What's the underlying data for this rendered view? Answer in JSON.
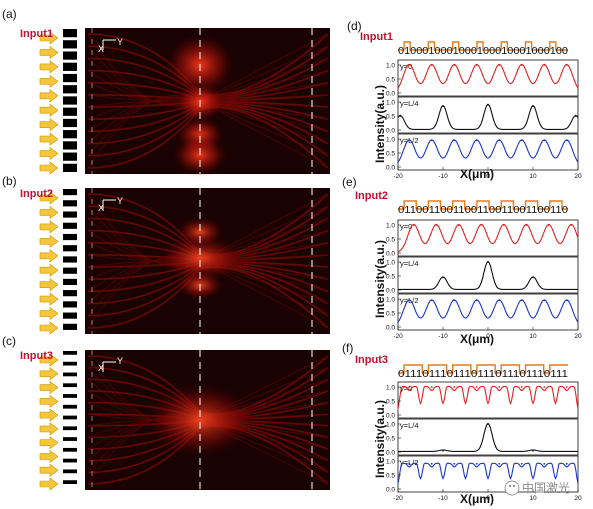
{
  "panels": {
    "a": {
      "letter": "(a)",
      "input": "Input1"
    },
    "b": {
      "letter": "(b)",
      "input": "Input2"
    },
    "c": {
      "letter": "(c)",
      "input": "Input3"
    },
    "d": {
      "letter": "(d)",
      "input": "Input1",
      "code": "0100010001000100010001000100"
    },
    "e": {
      "letter": "(e)",
      "input": "Input2",
      "code": "0110011001100110011001100110"
    },
    "f": {
      "letter": "(f)",
      "input": "Input3",
      "code": "0111011101110111011101110111"
    }
  },
  "sim_axes": {
    "x": "X",
    "y": "Y"
  },
  "shared": {
    "ylabel": "Intensity(a.u.)",
    "xlabel": "X(μm)",
    "ytick_labels": [
      "0.0",
      "0.5",
      "1.0"
    ],
    "xtick_labels": [
      "-20",
      "-10",
      "0",
      "10",
      "20"
    ]
  },
  "row_labels": [
    "y=0",
    "y=L/4",
    "y=L/2"
  ],
  "watermark": "中国激光",
  "chart_data": [
    {
      "type": "line",
      "panel": "d",
      "x_range": [
        -20,
        20
      ],
      "ylim": [
        0,
        1
      ],
      "series": [
        {
          "name": "y=0",
          "color": "#e02020",
          "peaks_x": [
            -17.5,
            -12.5,
            -7.5,
            -2.5,
            2.5,
            7.5,
            12.5,
            17.5
          ],
          "peaks_y": [
            1,
            1,
            1,
            1,
            1,
            1,
            1,
            1
          ]
        },
        {
          "name": "y=L/4",
          "color": "#111111",
          "peaks_x": [
            -19.5,
            -10,
            0,
            10,
            19.5
          ],
          "peaks_y": [
            0.5,
            0.85,
            0.9,
            0.85,
            0.5
          ]
        },
        {
          "name": "y=L/2",
          "color": "#1a35d0",
          "peaks_x": [
            -17.5,
            -12.5,
            -7.5,
            -2.5,
            2.5,
            7.5,
            12.5,
            17.5
          ],
          "peaks_y": [
            0.95,
            0.95,
            0.95,
            0.95,
            0.95,
            0.95,
            0.95,
            0.95
          ]
        }
      ]
    },
    {
      "type": "line",
      "panel": "e",
      "x_range": [
        -20,
        20
      ],
      "ylim": [
        0,
        1
      ],
      "series": [
        {
          "name": "y=0",
          "color": "#e02020",
          "peaks_x": [
            -16.5,
            -11.5,
            -6.5,
            -1.5,
            3.5,
            8.5,
            13.5,
            18.5
          ],
          "peaks_y": [
            1,
            1,
            1,
            1,
            1,
            1,
            1,
            1
          ]
        },
        {
          "name": "y=L/4",
          "color": "#111111",
          "peaks_x": [
            -10,
            0,
            10
          ],
          "peaks_y": [
            0.45,
            1,
            0.45
          ]
        },
        {
          "name": "y=L/2",
          "color": "#1a35d0",
          "peaks_x": [
            -17.5,
            -12.5,
            -7.5,
            -2.5,
            2.5,
            7.5,
            12.5,
            17.5
          ],
          "peaks_y": [
            0.95,
            0.95,
            0.95,
            0.95,
            0.95,
            0.95,
            0.95,
            0.95
          ]
        }
      ]
    },
    {
      "type": "line",
      "panel": "f",
      "x_range": [
        -20,
        20
      ],
      "ylim": [
        0,
        1
      ],
      "series": [
        {
          "name": "y=0",
          "color": "#e02020",
          "peaks_x": [
            -17.5,
            -12.5,
            -7.5,
            -2.5,
            2.5,
            7.5,
            12.5,
            17.5
          ],
          "peaks_y": [
            1,
            1,
            1,
            1,
            1,
            1,
            1,
            1
          ]
        },
        {
          "name": "y=L/4",
          "color": "#111111",
          "peaks_x": [
            -10,
            0,
            10
          ],
          "peaks_y": [
            0.05,
            1,
            0.05
          ]
        },
        {
          "name": "y=L/2",
          "color": "#1a35d0",
          "peaks_x": [
            -17.5,
            -12.5,
            -7.5,
            -2.5,
            2.5,
            7.5,
            12.5,
            17.5
          ],
          "peaks_y": [
            0.9,
            0.9,
            0.9,
            0.9,
            0.9,
            0.9,
            0.9,
            0.9
          ]
        }
      ]
    }
  ]
}
